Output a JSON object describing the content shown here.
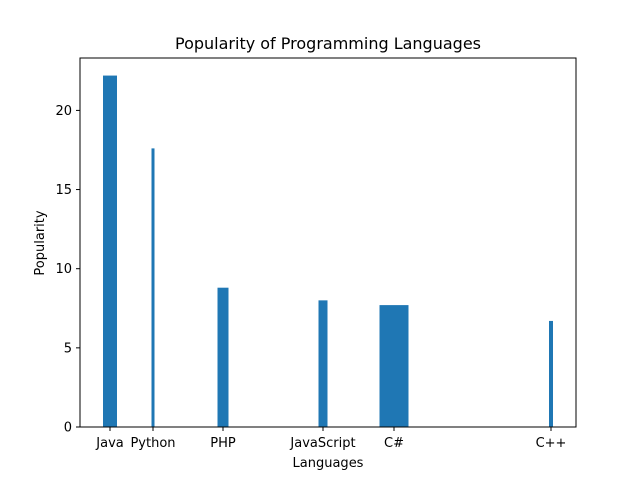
{
  "chart_data": {
    "type": "bar",
    "title": "Popularity of Programming Languages",
    "xlabel": "Languages",
    "ylabel": "Popularity",
    "categories": [
      "Java",
      "Python",
      "PHP",
      "JavaScript",
      "C#",
      "C++"
    ],
    "values": [
      22.2,
      17.6,
      8.8,
      8.0,
      7.7,
      6.7
    ],
    "ylim": [
      0,
      23.31
    ],
    "yticks": [
      0,
      5,
      10,
      15,
      20
    ],
    "ytick_labels": [
      "0",
      "5",
      "10",
      "15",
      "20"
    ],
    "grid": false,
    "bar_color": "#1f77b4"
  }
}
